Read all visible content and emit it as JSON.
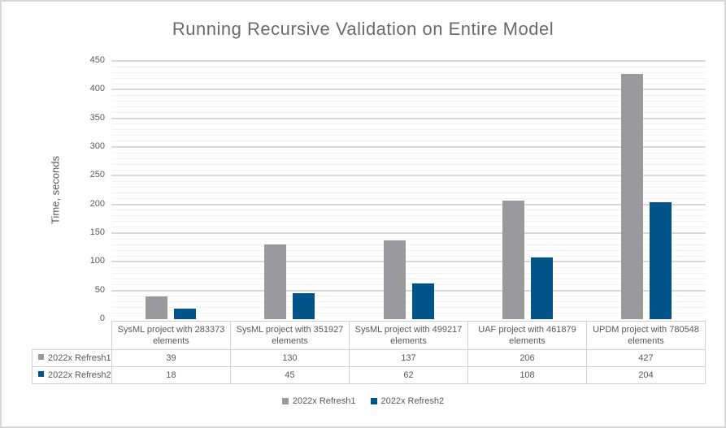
{
  "frame": {
    "background": "#ffffff",
    "border_color": "#d9d9d9"
  },
  "chart_data": {
    "type": "bar",
    "title": "Running Recursive Validation on Entire Model",
    "xlabel": "",
    "ylabel": "Time, seconds",
    "ylim": [
      0,
      450
    ],
    "y_major_step": 50,
    "y_minor_step": 10,
    "y_ticks": [
      0,
      50,
      100,
      150,
      200,
      250,
      300,
      350,
      400,
      450
    ],
    "grid": {
      "major": true,
      "minor": true,
      "major_color": "#d9d9d9",
      "minor_color": "#f2f2f2"
    },
    "categories": [
      "SysML project with 283373 elements",
      "SysML project with 351927 elements",
      "SysML project with 499217 elements",
      "UAF project with 461879 elements",
      "UPDM project with 780548 elements"
    ],
    "series": [
      {
        "name": "2022x Refresh1",
        "color": "#9a9a9c",
        "values": [
          39,
          130,
          137,
          206,
          427
        ]
      },
      {
        "name": "2022x Refresh2",
        "color": "#00548a",
        "values": [
          18,
          45,
          62,
          108,
          204
        ]
      }
    ],
    "legend_position": "bottom",
    "data_table_shown": true
  },
  "styles": {
    "title_color": "#6a6a6a",
    "axis_text_color": "#595959",
    "table_border_color": "#d0d0d0"
  }
}
